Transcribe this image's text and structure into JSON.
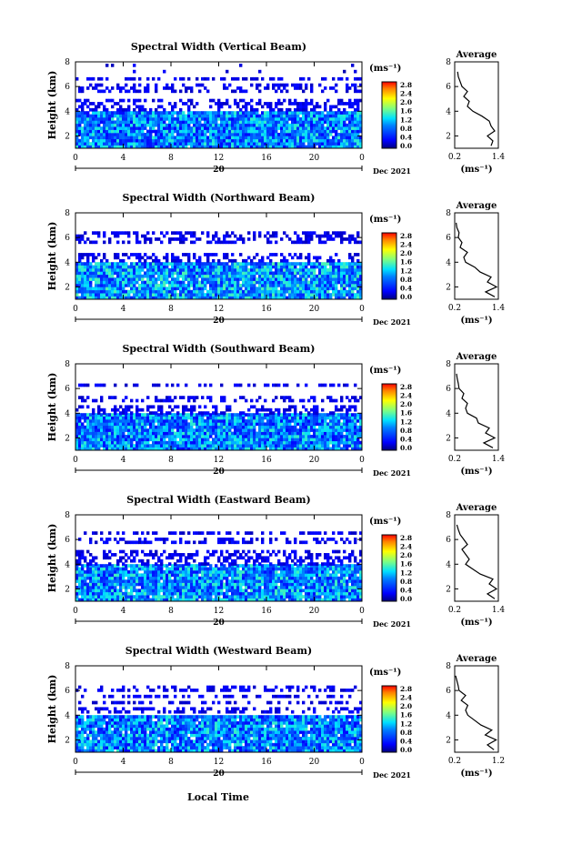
{
  "figure": {
    "xlabel": "Local Time",
    "date_label": "Dec 2021",
    "colorbar": {
      "unit": "(ms⁻¹)",
      "ticks": [
        "0.0",
        "0.4",
        "0.8",
        "1.2",
        "1.6",
        "2.0",
        "2.4",
        "2.8"
      ]
    },
    "average_title": "Average",
    "average_xlabel": "(ms⁻¹)",
    "day_label": "20"
  },
  "chart_data": [
    {
      "type": "heatmap",
      "title": "Spectral Width (Vertical Beam)",
      "ylabel": "Height (km)",
      "x_ticks": [
        "0",
        "4",
        "8",
        "12",
        "16",
        "20",
        "0"
      ],
      "y_ticks": [
        "2",
        "4",
        "6",
        "8"
      ],
      "xlim": [
        0,
        24
      ],
      "ylim": [
        1,
        8
      ],
      "colorscale": {
        "min": 0.0,
        "max": 2.8
      },
      "layers": [
        {
          "from": 1.0,
          "to": 4.0,
          "width": 0.9,
          "coverage": 0.97
        },
        {
          "from": 4.0,
          "to": 6.6,
          "width": 0.3,
          "coverage": 0.45
        },
        {
          "from": 6.6,
          "to": 8.0,
          "width": 0.25,
          "coverage": 0.06
        }
      ],
      "average": {
        "title": "Average",
        "xlabel": "(ms⁻¹)",
        "xticks": [
          "0.2",
          "1.4"
        ],
        "xlim": [
          0.2,
          1.4
        ],
        "ylim": [
          1,
          8
        ],
        "yticks": [
          "2",
          "4",
          "6",
          "8"
        ],
        "height": [
          1.2,
          1.6,
          2.0,
          2.4,
          2.8,
          3.2,
          3.6,
          4.0,
          4.4,
          4.8,
          5.2,
          5.6,
          6.0,
          6.4,
          6.8,
          7.2
        ],
        "value": [
          1.2,
          1.25,
          1.1,
          1.3,
          1.2,
          1.15,
          0.95,
          0.7,
          0.55,
          0.6,
          0.45,
          0.55,
          0.4,
          0.35,
          0.3,
          0.28
        ]
      }
    },
    {
      "type": "heatmap",
      "title": "Spectral Width (Northward Beam)",
      "ylabel": "Height (km)",
      "x_ticks": [
        "0",
        "4",
        "8",
        "12",
        "16",
        "20",
        "0"
      ],
      "y_ticks": [
        "2",
        "4",
        "6",
        "8"
      ],
      "xlim": [
        0,
        24
      ],
      "ylim": [
        1,
        8
      ],
      "colorscale": {
        "min": 0.0,
        "max": 2.8
      },
      "layers": [
        {
          "from": 1.0,
          "to": 4.0,
          "width": 1.0,
          "coverage": 0.96
        },
        {
          "from": 4.0,
          "to": 6.5,
          "width": 0.3,
          "coverage": 0.45
        },
        {
          "from": 6.5,
          "to": 8.0,
          "width": 0.25,
          "coverage": 0.1
        }
      ],
      "average": {
        "title": "Average",
        "xlabel": "(ms⁻¹)",
        "xticks": [
          "0.2",
          "1.4"
        ],
        "xlim": [
          0.2,
          1.4
        ],
        "ylim": [
          1,
          8
        ],
        "yticks": [
          "2",
          "4",
          "6",
          "8"
        ],
        "height": [
          1.2,
          1.6,
          2.0,
          2.4,
          2.8,
          3.2,
          3.6,
          4.0,
          4.4,
          4.8,
          5.2,
          5.6,
          6.0,
          6.4,
          6.8,
          7.2
        ],
        "value": [
          1.3,
          1.05,
          1.35,
          1.1,
          1.2,
          0.9,
          0.75,
          0.5,
          0.45,
          0.55,
          0.35,
          0.4,
          0.3,
          0.32,
          0.26,
          0.24
        ]
      }
    },
    {
      "type": "heatmap",
      "title": "Spectral Width (Southward Beam)",
      "ylabel": "Height (km)",
      "x_ticks": [
        "0",
        "4",
        "8",
        "12",
        "16",
        "20",
        "0"
      ],
      "y_ticks": [
        "2",
        "4",
        "6",
        "8"
      ],
      "xlim": [
        0,
        24
      ],
      "ylim": [
        1,
        8
      ],
      "colorscale": {
        "min": 0.0,
        "max": 2.8
      },
      "layers": [
        {
          "from": 1.0,
          "to": 3.9,
          "width": 0.9,
          "coverage": 0.97
        },
        {
          "from": 3.9,
          "to": 6.3,
          "width": 0.3,
          "coverage": 0.4
        },
        {
          "from": 6.3,
          "to": 8.0,
          "width": 0.25,
          "coverage": 0.08
        }
      ],
      "average": {
        "title": "Average",
        "xlabel": "(ms⁻¹)",
        "xticks": [
          "0.2",
          "1.4"
        ],
        "xlim": [
          0.2,
          1.4
        ],
        "ylim": [
          1,
          8
        ],
        "yticks": [
          "2",
          "4",
          "6",
          "8"
        ],
        "height": [
          1.2,
          1.6,
          2.0,
          2.4,
          2.8,
          3.2,
          3.6,
          4.0,
          4.4,
          4.8,
          5.2,
          5.6,
          6.0,
          6.4,
          6.8,
          7.2
        ],
        "value": [
          1.25,
          1.0,
          1.3,
          1.05,
          1.15,
          0.85,
          0.8,
          0.55,
          0.5,
          0.55,
          0.4,
          0.45,
          0.32,
          0.3,
          0.27,
          0.25
        ]
      }
    },
    {
      "type": "heatmap",
      "title": "Spectral Width (Eastward Beam)",
      "ylabel": "Height (km)",
      "x_ticks": [
        "0",
        "4",
        "8",
        "12",
        "16",
        "20",
        "0"
      ],
      "y_ticks": [
        "2",
        "4",
        "6",
        "8"
      ],
      "xlim": [
        0,
        24
      ],
      "ylim": [
        1,
        8
      ],
      "colorscale": {
        "min": 0.0,
        "max": 2.8
      },
      "layers": [
        {
          "from": 1.0,
          "to": 3.9,
          "width": 0.95,
          "coverage": 0.96
        },
        {
          "from": 3.9,
          "to": 6.5,
          "width": 0.3,
          "coverage": 0.45
        },
        {
          "from": 6.5,
          "to": 8.0,
          "width": 0.25,
          "coverage": 0.1
        }
      ],
      "average": {
        "title": "Average",
        "xlabel": "(ms⁻¹)",
        "xticks": [
          "0.2",
          "1.4"
        ],
        "xlim": [
          0.2,
          1.4
        ],
        "ylim": [
          1,
          8
        ],
        "yticks": [
          "2",
          "4",
          "6",
          "8"
        ],
        "height": [
          1.2,
          1.6,
          2.0,
          2.4,
          2.8,
          3.2,
          3.6,
          4.0,
          4.4,
          4.8,
          5.2,
          5.6,
          6.0,
          6.4,
          6.8,
          7.2
        ],
        "value": [
          1.3,
          1.1,
          1.35,
          1.15,
          1.25,
          0.9,
          0.7,
          0.5,
          0.6,
          0.5,
          0.4,
          0.55,
          0.45,
          0.35,
          0.3,
          0.26
        ]
      }
    },
    {
      "type": "heatmap",
      "title": "Spectral Width (Westward Beam)",
      "ylabel": "Height (km)",
      "x_ticks": [
        "0",
        "4",
        "8",
        "12",
        "16",
        "20",
        "0"
      ],
      "y_ticks": [
        "2",
        "4",
        "6",
        "8"
      ],
      "xlim": [
        0,
        24
      ],
      "ylim": [
        1,
        8
      ],
      "colorscale": {
        "min": 0.0,
        "max": 2.8
      },
      "layers": [
        {
          "from": 1.0,
          "to": 3.9,
          "width": 0.9,
          "coverage": 0.96
        },
        {
          "from": 3.9,
          "to": 6.2,
          "width": 0.3,
          "coverage": 0.4
        },
        {
          "from": 6.2,
          "to": 8.0,
          "width": 0.25,
          "coverage": 0.12
        }
      ],
      "average": {
        "title": "Average",
        "xlabel": "(ms⁻¹)",
        "xticks": [
          "0.2",
          "1.2"
        ],
        "xlim": [
          0.2,
          1.2
        ],
        "ylim": [
          1,
          8
        ],
        "yticks": [
          "2",
          "4",
          "6",
          "8"
        ],
        "height": [
          1.2,
          1.6,
          2.0,
          2.4,
          2.8,
          3.2,
          3.6,
          4.0,
          4.4,
          4.8,
          5.2,
          5.6,
          6.0,
          6.4,
          6.8,
          7.2
        ],
        "value": [
          1.1,
          0.95,
          1.15,
          0.9,
          1.05,
          0.8,
          0.65,
          0.5,
          0.45,
          0.5,
          0.35,
          0.45,
          0.3,
          0.28,
          0.25,
          0.22
        ]
      }
    }
  ]
}
